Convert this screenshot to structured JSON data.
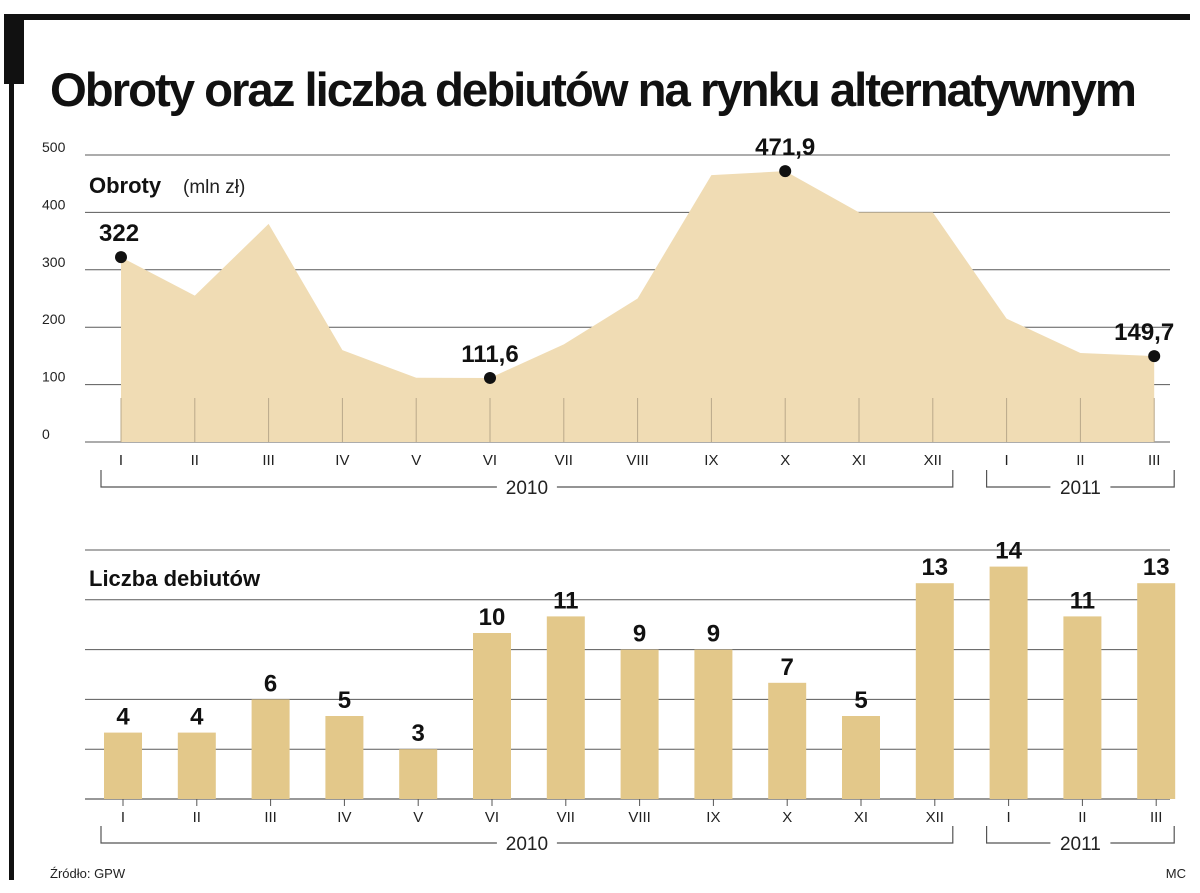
{
  "title": "Obroty oraz liczba debiutów na rynku alternatywnym",
  "source": "Źródło: GPW",
  "credit": "MC",
  "colors": {
    "fill": "#f0dcb4",
    "bar": "#e3c88a",
    "grid": "#5a5a5a",
    "frame": "#111111"
  },
  "chart_data": [
    {
      "type": "area",
      "title": "Obroty",
      "unit": "(mln zł)",
      "categories": [
        "I",
        "II",
        "III",
        "IV",
        "V",
        "VI",
        "VII",
        "VIII",
        "IX",
        "X",
        "XI",
        "XII",
        "I",
        "II",
        "III"
      ],
      "values": [
        322,
        255,
        380,
        160,
        112,
        111.6,
        170,
        250,
        465,
        471.9,
        400,
        400,
        215,
        155,
        149.7
      ],
      "labels": [
        {
          "index": 0,
          "text": "322"
        },
        {
          "index": 5,
          "text": "111,6"
        },
        {
          "index": 9,
          "text": "471,9"
        },
        {
          "index": 14,
          "text": "149,7"
        }
      ],
      "yticks": [
        0,
        100,
        200,
        300,
        400,
        500
      ],
      "ylim": [
        0,
        500
      ],
      "years": [
        {
          "label": "2010",
          "from": 0,
          "to": 11
        },
        {
          "label": "2011",
          "from": 12,
          "to": 14
        }
      ],
      "grid": true
    },
    {
      "type": "bar",
      "title": "Liczba debiutów",
      "categories": [
        "I",
        "II",
        "III",
        "IV",
        "V",
        "VI",
        "VII",
        "VIII",
        "IX",
        "X",
        "XI",
        "XII",
        "I",
        "II",
        "III"
      ],
      "values": [
        4,
        4,
        6,
        5,
        3,
        10,
        11,
        9,
        9,
        7,
        5,
        13,
        14,
        11,
        13
      ],
      "ylim": [
        0,
        15
      ],
      "gridlines": [
        3,
        6,
        9,
        12,
        15
      ],
      "years": [
        {
          "label": "2010",
          "from": 0,
          "to": 11
        },
        {
          "label": "2011",
          "from": 12,
          "to": 14
        }
      ],
      "grid": true
    }
  ]
}
